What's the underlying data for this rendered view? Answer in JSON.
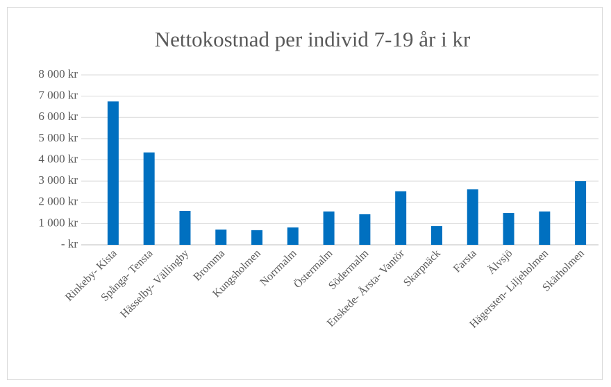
{
  "chart_data": {
    "type": "bar",
    "title": "Nettokostnad per individ 7-19 år i kr",
    "categories": [
      "Rinkeby- Kista",
      "Spånga- Tensta",
      "Hässelby- Vällingby",
      "Bromma",
      "Kungsholmen",
      "Norrmalm",
      "Östermalm",
      "Södermalm",
      "Enskede- Årsta- Vantör",
      "Skarpnäck",
      "Farsta",
      "Älvsjö",
      "Hägersten- Liljeholmen",
      "Skärholmen"
    ],
    "values": [
      6750,
      4350,
      1600,
      720,
      690,
      820,
      1570,
      1440,
      2520,
      880,
      2610,
      1500,
      1570,
      3000
    ],
    "color": "#0070c0",
    "ylim": [
      0,
      8000
    ],
    "yticks": [
      {
        "value": 0,
        "label": "-   kr"
      },
      {
        "value": 1000,
        "label": "1 000 kr"
      },
      {
        "value": 2000,
        "label": "2 000 kr"
      },
      {
        "value": 3000,
        "label": "3 000 kr"
      },
      {
        "value": 4000,
        "label": "4 000 kr"
      },
      {
        "value": 5000,
        "label": "5 000 kr"
      },
      {
        "value": 6000,
        "label": "6 000 kr"
      },
      {
        "value": 7000,
        "label": "7 000 kr"
      },
      {
        "value": 8000,
        "label": "8 000 kr"
      }
    ],
    "grid": true
  }
}
